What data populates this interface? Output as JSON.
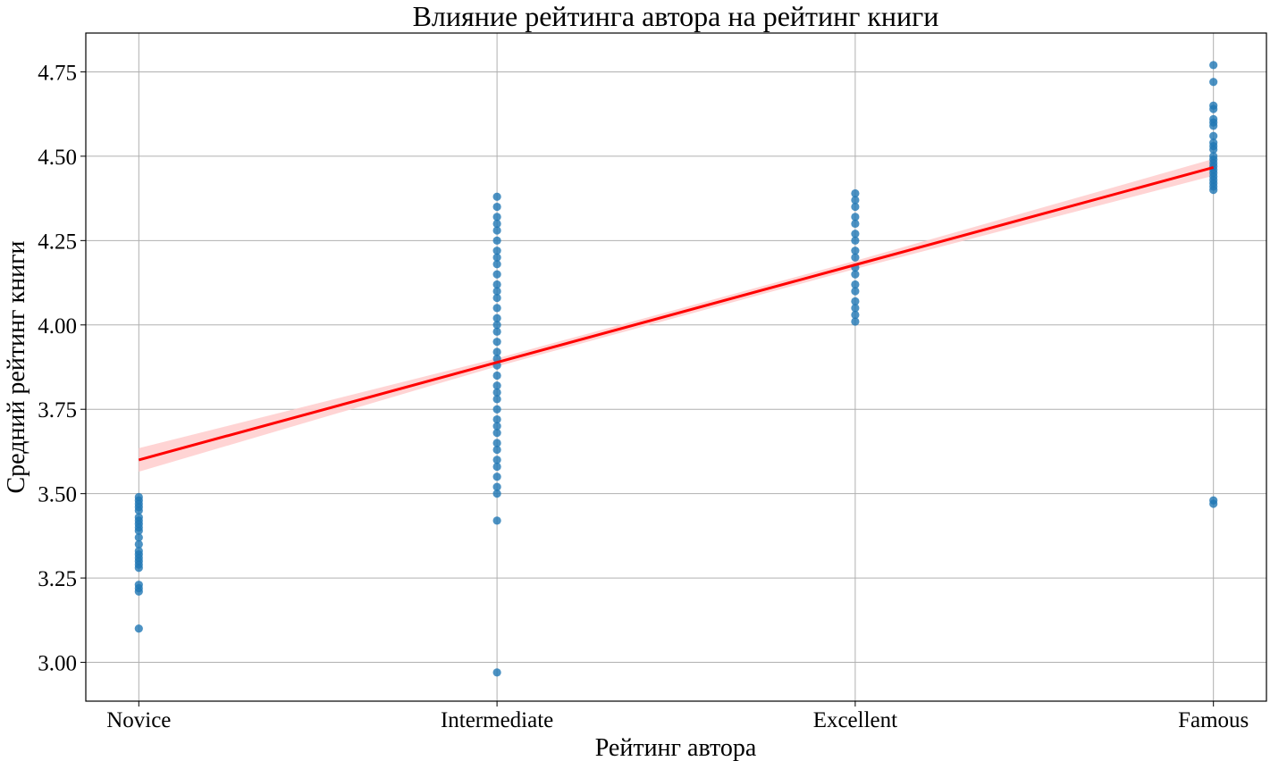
{
  "chart_data": {
    "type": "scatter",
    "title": "Влияние рейтинга автора на рейтинг книги",
    "xlabel": "Рейтинг автора",
    "ylabel": "Средний рейтинг книги",
    "categories": [
      "Novice",
      "Intermediate",
      "Excellent",
      "Famous"
    ],
    "yticks": [
      "3.00",
      "3.25",
      "3.50",
      "3.75",
      "4.00",
      "4.25",
      "4.50",
      "4.75"
    ],
    "ylim": [
      2.885,
      4.865
    ],
    "grid": true,
    "point_color": "#1f77b4",
    "series": [
      {
        "category": "Novice",
        "values": [
          3.1,
          3.21,
          3.22,
          3.23,
          3.28,
          3.29,
          3.3,
          3.31,
          3.32,
          3.33,
          3.35,
          3.37,
          3.39,
          3.4,
          3.41,
          3.42,
          3.43,
          3.45,
          3.46,
          3.47,
          3.48,
          3.49
        ]
      },
      {
        "category": "Intermediate",
        "values": [
          2.97,
          3.42,
          3.5,
          3.52,
          3.55,
          3.58,
          3.6,
          3.63,
          3.65,
          3.68,
          3.7,
          3.72,
          3.75,
          3.78,
          3.8,
          3.82,
          3.85,
          3.88,
          3.9,
          3.92,
          3.95,
          3.98,
          4.0,
          4.02,
          4.05,
          4.08,
          4.1,
          4.12,
          4.15,
          4.18,
          4.2,
          4.22,
          4.25,
          4.28,
          4.3,
          4.32,
          4.35,
          4.38
        ]
      },
      {
        "category": "Excellent",
        "values": [
          4.01,
          4.03,
          4.05,
          4.07,
          4.1,
          4.12,
          4.15,
          4.17,
          4.2,
          4.22,
          4.25,
          4.27,
          4.3,
          4.32,
          4.35,
          4.37,
          4.39
        ]
      },
      {
        "category": "Famous",
        "values": [
          3.47,
          3.48,
          4.4,
          4.41,
          4.42,
          4.43,
          4.44,
          4.45,
          4.46,
          4.47,
          4.48,
          4.49,
          4.5,
          4.52,
          4.53,
          4.54,
          4.56,
          4.59,
          4.6,
          4.61,
          4.64,
          4.65,
          4.72,
          4.77
        ]
      }
    ],
    "regression": {
      "color": "#ff0000",
      "band_color": "#ffcccc",
      "points": [
        [
          0,
          3.6
        ],
        [
          1,
          3.889
        ],
        [
          2,
          4.178
        ],
        [
          3,
          4.467
        ]
      ],
      "ci_halfwidth": [
        0.035,
        0.012,
        0.012,
        0.025
      ]
    }
  }
}
